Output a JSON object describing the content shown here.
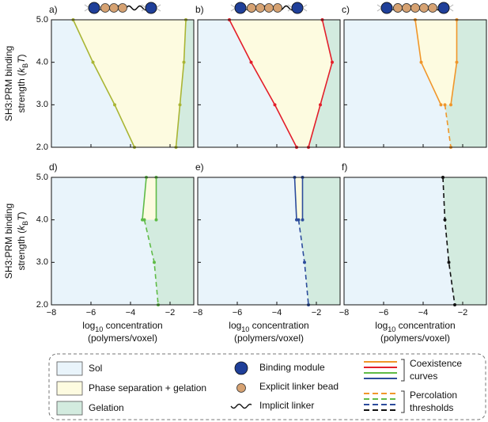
{
  "chart_data": [
    {
      "type": "line",
      "label": "a)",
      "xlim": [
        -8,
        -0.8
      ],
      "ylim": [
        2,
        5
      ],
      "xticks": [
        -8,
        -6,
        -4,
        -2
      ],
      "yticks": [
        {
          "value": 2,
          "label": "2.0"
        },
        {
          "value": 3,
          "label": "3.0"
        },
        {
          "value": 4,
          "label": "4.0"
        },
        {
          "value": 5,
          "label": "5.0"
        }
      ],
      "series": [
        {
          "color": "#a9b534",
          "dash": false,
          "x": [
            -6.9,
            -5.9,
            -4.8,
            -3.8
          ],
          "values": [
            5,
            4,
            3,
            2
          ]
        },
        {
          "color": "#a9b534",
          "dash": false,
          "x": [
            -1.2,
            -1.3,
            -1.5,
            -1.7
          ],
          "values": [
            5,
            4,
            3,
            2
          ]
        }
      ]
    },
    {
      "type": "line",
      "label": "b)",
      "xlim": [
        -8,
        -0.8
      ],
      "ylim": [
        2,
        5
      ],
      "xticks": [
        -8,
        -6,
        -4,
        -2
      ],
      "yticks": [
        2,
        3,
        4,
        5
      ],
      "series": [
        {
          "color": "#e31e2a",
          "dash": false,
          "x": [
            -6.4,
            -5.3,
            -4.1,
            -3.0
          ],
          "values": [
            5,
            4,
            3,
            2
          ]
        },
        {
          "color": "#e31e2a",
          "dash": false,
          "x": [
            -1.7,
            -1.2,
            -1.8,
            -2.4
          ],
          "values": [
            5,
            4,
            3,
            2
          ]
        }
      ]
    },
    {
      "type": "line",
      "label": "c)",
      "xlim": [
        -8,
        -0.8
      ],
      "ylim": [
        2,
        5
      ],
      "xticks": [
        -8,
        -6,
        -4,
        -2
      ],
      "yticks": [
        2,
        3,
        4,
        5
      ],
      "series": [
        {
          "color": "#f0962a",
          "dash": false,
          "x": [
            -4.4,
            -4.1,
            -3.1
          ],
          "values": [
            5,
            4,
            3
          ]
        },
        {
          "color": "#f0962a",
          "dash": false,
          "x": [
            -2.3,
            -2.3,
            -2.6
          ],
          "values": [
            5,
            4,
            3
          ]
        },
        {
          "color": "#f0962a",
          "dash": true,
          "x": [
            -2.9,
            -2.6
          ],
          "values": [
            3,
            2
          ]
        }
      ]
    },
    {
      "type": "line",
      "label": "d)",
      "xlim": [
        -8,
        -0.8
      ],
      "ylim": [
        2,
        5
      ],
      "xticks": [
        {
          "value": -8,
          "label": "−8"
        },
        {
          "value": -6,
          "label": "−6"
        },
        {
          "value": -4,
          "label": "−4"
        },
        {
          "value": -2,
          "label": "−2"
        }
      ],
      "yticks": [
        {
          "value": 2,
          "label": "2.0"
        },
        {
          "value": 3,
          "label": "3.0"
        },
        {
          "value": 4,
          "label": "4.0"
        },
        {
          "value": 5,
          "label": "5.0"
        }
      ],
      "series": [
        {
          "color": "#5fbb46",
          "dash": false,
          "x": [
            -3.2,
            -3.4
          ],
          "values": [
            5,
            4
          ]
        },
        {
          "color": "#5fbb46",
          "dash": false,
          "x": [
            -2.7,
            -2.7
          ],
          "values": [
            5,
            4
          ]
        },
        {
          "color": "#5fbb46",
          "dash": true,
          "x": [
            -3.3,
            -2.8,
            -2.6
          ],
          "values": [
            4,
            3,
            2
          ]
        }
      ]
    },
    {
      "type": "line",
      "label": "e)",
      "xlim": [
        -8,
        -0.8
      ],
      "ylim": [
        2,
        5
      ],
      "xticks": [
        {
          "value": -8,
          "label": "−8"
        },
        {
          "value": -6,
          "label": "−6"
        },
        {
          "value": -4,
          "label": "−4"
        },
        {
          "value": -2,
          "label": "−2"
        }
      ],
      "yticks": [
        2,
        3,
        4,
        5
      ],
      "series": [
        {
          "color": "#2c4c9c",
          "dash": false,
          "x": [
            -3.1,
            -3.0
          ],
          "values": [
            5,
            4
          ]
        },
        {
          "color": "#2c4c9c",
          "dash": false,
          "x": [
            -2.7,
            -2.7
          ],
          "values": [
            5,
            4
          ]
        },
        {
          "color": "#2c4c9c",
          "dash": true,
          "x": [
            -2.9,
            -2.6,
            -2.4
          ],
          "values": [
            4,
            3,
            2
          ]
        }
      ]
    },
    {
      "type": "line",
      "label": "f)",
      "xlim": [
        -8,
        -0.8
      ],
      "ylim": [
        2,
        5
      ],
      "xticks": [
        {
          "value": -8,
          "label": "−8"
        },
        {
          "value": -6,
          "label": "−6"
        },
        {
          "value": -4,
          "label": "−4"
        },
        {
          "value": -2,
          "label": "−2"
        }
      ],
      "yticks": [
        2,
        3,
        4,
        5
      ],
      "series": [
        {
          "color": "#111111",
          "dash": true,
          "x": [
            -3.0,
            -2.9,
            -2.7,
            -2.4
          ],
          "values": [
            5,
            4,
            3,
            2
          ]
        }
      ]
    }
  ],
  "axis_labels": {
    "y_line1": "SH3:PRM binding",
    "y_line2": [
      "strength (",
      "k",
      "B",
      "T",
      ")"
    ],
    "x_line1": [
      "log",
      "10",
      " concentration"
    ],
    "x_line2": "(polymers/voxel)"
  },
  "legend": {
    "regions": [
      {
        "label": "Sol",
        "color": "#e9f4fb"
      },
      {
        "label": "Phase separation + gelation",
        "color": "#fdfbe0"
      },
      {
        "label": "Gelation",
        "color": "#d3ebdf"
      }
    ],
    "symbols": [
      "Binding module",
      "Explicit linker bead",
      "Implicit linker"
    ],
    "coexistence": {
      "lines": [
        "Coexistence",
        "curves"
      ],
      "colors": [
        "#f0962a",
        "#e31e2a",
        "#5fbb46",
        "#2c4c9c"
      ]
    },
    "percolation": {
      "lines": [
        "Percolation",
        "thresholds"
      ],
      "colors": [
        "#f0962a",
        "#5fbb46",
        "#2c4c9c",
        "#111111"
      ]
    }
  }
}
